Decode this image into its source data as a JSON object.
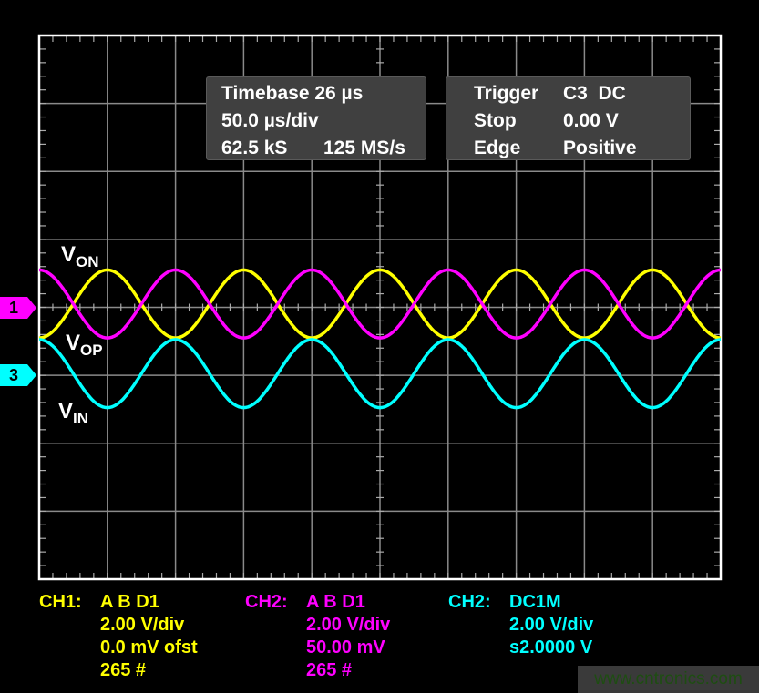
{
  "chart_data": {
    "type": "line",
    "title": "",
    "grid": true,
    "x_divisions": 10,
    "y_divisions": 8,
    "xlim_us": [
      0,
      500
    ],
    "volts_per_div": 2.0,
    "series": [
      {
        "name": "VON",
        "color": "#ffff00",
        "period_us": 100,
        "amplitude_v": 1.0,
        "offset_v": 0.1,
        "phase": "trough-at-start"
      },
      {
        "name": "VOP",
        "color": "#ff00ff",
        "period_us": 100,
        "amplitude_v": 1.0,
        "offset_v": 0.1,
        "phase": "peak-at-start"
      },
      {
        "name": "VIN",
        "color": "#00ffff",
        "period_us": 100,
        "amplitude_v": 1.0,
        "offset_v": -1.95,
        "phase": "peak-at-start"
      }
    ],
    "trace_labels": [
      {
        "main": "V",
        "sub": "ON"
      },
      {
        "main": "V",
        "sub": "OP"
      },
      {
        "main": "V",
        "sub": "IN"
      }
    ],
    "channel_markers": [
      {
        "label": "1",
        "color": "#ff00ff"
      },
      {
        "label": "3",
        "color": "#00ffff"
      }
    ]
  },
  "timebase_box": {
    "rows": [
      [
        "Timebase 26 µs"
      ],
      [
        "50.0 µs/div"
      ],
      [
        "62.5 kS",
        "125 MS/s"
      ]
    ]
  },
  "trigger_box": {
    "rows": [
      [
        "Trigger",
        "C3  DC"
      ],
      [
        "Stop",
        "0.00 V"
      ],
      [
        "Edge",
        "Positive"
      ]
    ]
  },
  "channels": [
    {
      "color": "#ffff00",
      "header": "CH1:",
      "coupling": "A B D1",
      "lines": [
        "2.00 V/div",
        "0.0 mV ofst",
        "265 #"
      ]
    },
    {
      "color": "#ff00ff",
      "header": "CH2:",
      "coupling": "A B D1",
      "lines": [
        "2.00 V/div",
        "50.00 mV",
        "265 #"
      ]
    },
    {
      "color": "#00ffff",
      "header": "CH2:",
      "coupling": "DC1M",
      "lines": [
        "2.00 V/div",
        "s2.0000 V"
      ]
    }
  ],
  "watermark": "www.cntronics.com"
}
